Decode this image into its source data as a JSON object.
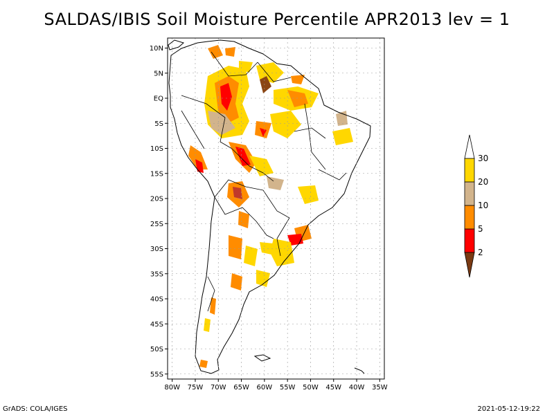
{
  "title": "SALDAS/IBIS Soil Moisture Percentile APR2013 lev = 1",
  "map": {
    "lat_labels": [
      "10N",
      "5N",
      "EQ",
      "5S",
      "10S",
      "15S",
      "20S",
      "25S",
      "30S",
      "35S",
      "40S",
      "45S",
      "50S",
      "55S"
    ],
    "lon_labels": [
      "80W",
      "75W",
      "70W",
      "65W",
      "60W",
      "55W",
      "50W",
      "45W",
      "40W",
      "35W"
    ],
    "lat_range": [
      -56,
      12
    ],
    "lon_range": [
      -81,
      -34
    ]
  },
  "legend": {
    "labels": [
      "2",
      "5",
      "10",
      "20",
      "30"
    ],
    "colors": [
      "#7a3a13",
      "#ff0000",
      "#ff8c00",
      "#d2b48c",
      "#ffd700",
      "#ffffff"
    ]
  },
  "footer": {
    "left": "GrADS: COLA/IGES",
    "right": "2021-05-12-19:22"
  }
}
